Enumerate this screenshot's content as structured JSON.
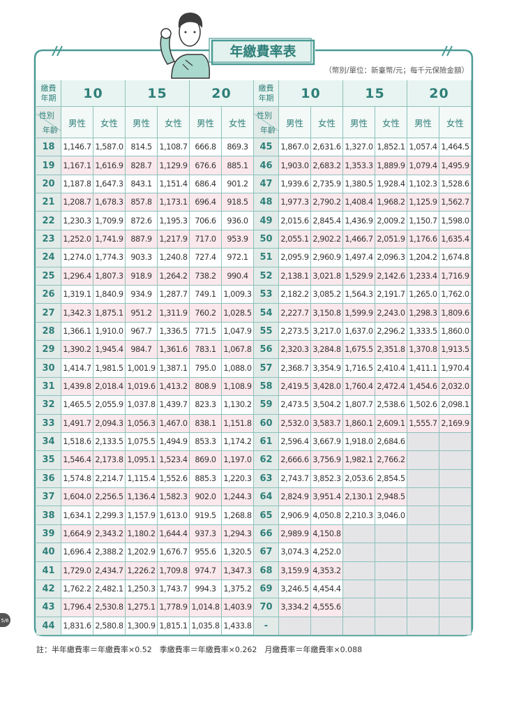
{
  "header": {
    "title": "年繳費率表",
    "subtitle": "（幣別/單位：新臺幣/元；每千元保險金額）"
  },
  "table": {
    "period_row": [
      "繳費\n年期",
      "10",
      "15",
      "20",
      "繳費\n年期",
      "10",
      "15",
      "20"
    ],
    "sex_row": [
      {
        "sex": "性別",
        "age": "年齡"
      },
      "男性",
      "女性",
      "男性",
      "女性",
      "男性",
      "女性",
      {
        "sex": "性別",
        "age": "年齡"
      },
      "男性",
      "女性",
      "男性",
      "女性",
      "男性",
      "女性"
    ],
    "rows": [
      [
        "18",
        "1,146.7",
        "1,587.0",
        "814.5",
        "1,108.7",
        "666.8",
        "869.3",
        "45",
        "1,867.0",
        "2,631.6",
        "1,327.0",
        "1,852.1",
        "1,057.4",
        "1,464.5"
      ],
      [
        "19",
        "1,167.1",
        "1,616.9",
        "828.7",
        "1,129.9",
        "676.6",
        "885.1",
        "46",
        "1,903.0",
        "2,683.2",
        "1,353.3",
        "1,889.9",
        "1,079.4",
        "1,495.9"
      ],
      [
        "20",
        "1,187.8",
        "1,647.3",
        "843.1",
        "1,151.4",
        "686.4",
        "901.2",
        "47",
        "1,939.6",
        "2,735.9",
        "1,380.5",
        "1,928.4",
        "1,102.3",
        "1,528.6"
      ],
      [
        "21",
        "1,208.7",
        "1,678.3",
        "857.8",
        "1,173.1",
        "696.4",
        "918.5",
        "48",
        "1,977.3",
        "2,790.2",
        "1,408.4",
        "1,968.2",
        "1,125.9",
        "1,562.7"
      ],
      [
        "22",
        "1,230.3",
        "1,709.9",
        "872.6",
        "1,195.3",
        "706.6",
        "936.0",
        "49",
        "2,015.6",
        "2,845.4",
        "1,436.9",
        "2,009.2",
        "1,150.7",
        "1,598.0"
      ],
      [
        "23",
        "1,252.0",
        "1,741.9",
        "887.9",
        "1,217.9",
        "717.0",
        "953.9",
        "50",
        "2,055.1",
        "2,902.2",
        "1,466.7",
        "2,051.9",
        "1,176.6",
        "1,635.4"
      ],
      [
        "24",
        "1,274.0",
        "1,774.3",
        "903.3",
        "1,240.8",
        "727.4",
        "972.1",
        "51",
        "2,095.9",
        "2,960.9",
        "1,497.4",
        "2,096.3",
        "1,204.2",
        "1,674.8"
      ],
      [
        "25",
        "1,296.4",
        "1,807.3",
        "918.9",
        "1,264.2",
        "738.2",
        "990.4",
        "52",
        "2,138.1",
        "3,021.8",
        "1,529.9",
        "2,142.6",
        "1,233.4",
        "1,716.9"
      ],
      [
        "26",
        "1,319.1",
        "1,840.9",
        "934.9",
        "1,287.7",
        "749.1",
        "1,009.3",
        "53",
        "2,182.2",
        "3,085.2",
        "1,564.3",
        "2,191.7",
        "1,265.0",
        "1,762.0"
      ],
      [
        "27",
        "1,342.3",
        "1,875.1",
        "951.2",
        "1,311.9",
        "760.2",
        "1,028.5",
        "54",
        "2,227.7",
        "3,150.8",
        "1,599.9",
        "2,243.0",
        "1,298.3",
        "1,809.6"
      ],
      [
        "28",
        "1,366.1",
        "1,910.0",
        "967.7",
        "1,336.5",
        "771.5",
        "1,047.9",
        "55",
        "2,273.5",
        "3,217.0",
        "1,637.0",
        "2,296.2",
        "1,333.5",
        "1,860.0"
      ],
      [
        "29",
        "1,390.2",
        "1,945.4",
        "984.7",
        "1,361.6",
        "783.1",
        "1,067.8",
        "56",
        "2,320.3",
        "3,284.8",
        "1,675.5",
        "2,351.8",
        "1,370.8",
        "1,913.5"
      ],
      [
        "30",
        "1,414.7",
        "1,981.5",
        "1,001.9",
        "1,387.1",
        "795.0",
        "1,088.0",
        "57",
        "2,368.7",
        "3,354.9",
        "1,716.5",
        "2,410.4",
        "1,411.1",
        "1,970.4"
      ],
      [
        "31",
        "1,439.8",
        "2,018.4",
        "1,019.6",
        "1,413.2",
        "808.9",
        "1,108.9",
        "58",
        "2,419.5",
        "3,428.0",
        "1,760.4",
        "2,472.4",
        "1,454.6",
        "2,032.0"
      ],
      [
        "32",
        "1,465.5",
        "2,055.9",
        "1,037.8",
        "1,439.7",
        "823.3",
        "1,130.2",
        "59",
        "2,473.5",
        "3,504.2",
        "1,807.7",
        "2,538.6",
        "1,502.6",
        "2,098.1"
      ],
      [
        "33",
        "1,491.7",
        "2,094.3",
        "1,056.3",
        "1,467.0",
        "838.1",
        "1,151.8",
        "60",
        "2,532.0",
        "3,583.7",
        "1,860.1",
        "2,609.1",
        "1,555.7",
        "2,169.9"
      ],
      [
        "34",
        "1,518.6",
        "2,133.5",
        "1,075.5",
        "1,494.9",
        "853.3",
        "1,174.2",
        "61",
        "2,596.4",
        "3,667.9",
        "1,918.0",
        "2,684.6",
        null,
        null
      ],
      [
        "35",
        "1,546.4",
        "2,173.8",
        "1,095.1",
        "1,523.4",
        "869.0",
        "1,197.0",
        "62",
        "2,666.6",
        "3,756.9",
        "1,982.1",
        "2,766.2",
        null,
        null
      ],
      [
        "36",
        "1,574.8",
        "2,214.7",
        "1,115.4",
        "1,552.6",
        "885.3",
        "1,220.3",
        "63",
        "2,743.7",
        "3,852.3",
        "2,053.6",
        "2,854.5",
        null,
        null
      ],
      [
        "37",
        "1,604.0",
        "2,256.5",
        "1,136.4",
        "1,582.3",
        "902.0",
        "1,244.3",
        "64",
        "2,824.9",
        "3,951.4",
        "2,130.1",
        "2,948.5",
        null,
        null
      ],
      [
        "38",
        "1,634.1",
        "2,299.3",
        "1,157.9",
        "1,613.0",
        "919.5",
        "1,268.8",
        "65",
        "2,906.9",
        "4,050.8",
        "2,210.3",
        "3,046.0",
        null,
        null
      ],
      [
        "39",
        "1,664.9",
        "2,343.2",
        "1,180.2",
        "1,644.4",
        "937.3",
        "1,294.3",
        "66",
        "2,989.9",
        "4,150.8",
        null,
        null,
        null,
        null
      ],
      [
        "40",
        "1,696.4",
        "2,388.2",
        "1,202.9",
        "1,676.7",
        "955.6",
        "1,320.5",
        "67",
        "3,074.3",
        "4,252.0",
        null,
        null,
        null,
        null
      ],
      [
        "41",
        "1,729.0",
        "2,434.7",
        "1,226.2",
        "1,709.8",
        "974.7",
        "1,347.3",
        "68",
        "3,159.9",
        "4,353.2",
        null,
        null,
        null,
        null
      ],
      [
        "42",
        "1,762.2",
        "2,482.1",
        "1,250.3",
        "1,743.7",
        "994.3",
        "1,375.2",
        "69",
        "3,246.5",
        "4,454.4",
        null,
        null,
        null,
        null
      ],
      [
        "43",
        "1,796.4",
        "2,530.8",
        "1,275.1",
        "1,778.9",
        "1,014.8",
        "1,403.9",
        "70",
        "3,334.2",
        "4,555.6",
        null,
        null,
        null,
        null
      ],
      [
        "44",
        "1,831.6",
        "2,580.8",
        "1,300.9",
        "1,815.1",
        "1,035.8",
        "1,433.8",
        "-",
        null,
        null,
        null,
        null,
        null,
        null
      ]
    ]
  },
  "footnote": "註：半年繳費率＝年繳費率×0.52　季繳費率＝年繳費率×0.262　月繳費率＝年繳費率×0.088",
  "page_number": "5/6"
}
